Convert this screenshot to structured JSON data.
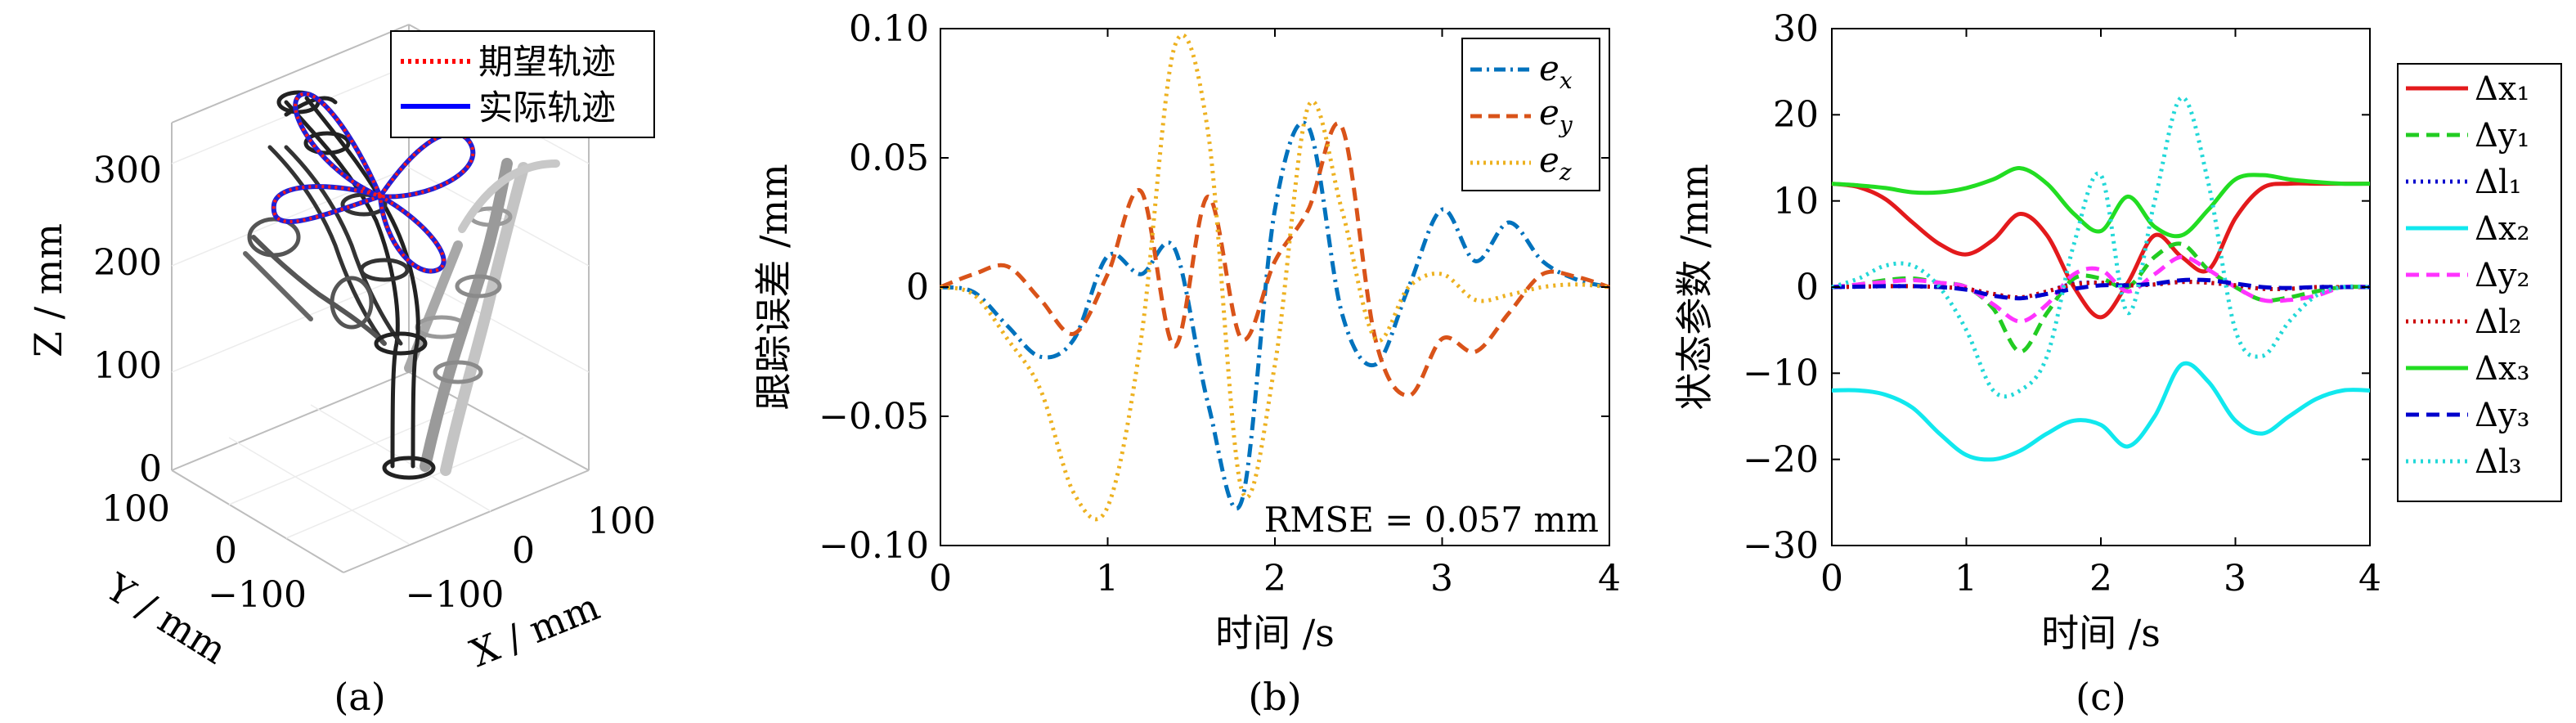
{
  "chart_data": [
    {
      "panel": "(a)",
      "type": "3d-line",
      "zlabel": "Z / mm",
      "ylabel": "Y / mm",
      "xlabel": "X / mm",
      "zticks": [
        "0",
        "100",
        "200",
        "300"
      ],
      "yticks": [
        "100",
        "0",
        "−100"
      ],
      "xticks": [
        "−100",
        "0",
        "100"
      ],
      "legend": [
        {
          "name": "期望轨迹",
          "color": "#ff0000",
          "style": "dotted"
        },
        {
          "name": "实际轨迹",
          "color": "#0000ff",
          "style": "solid"
        }
      ],
      "legend_position": "top-right"
    },
    {
      "panel": "(b)",
      "type": "line",
      "xlabel": "时间 /s",
      "ylabel": "跟踪误差 /mm",
      "xlim": [
        0,
        4
      ],
      "ylim": [
        -0.1,
        0.1
      ],
      "xticks": [
        "0",
        "1",
        "2",
        "3",
        "4"
      ],
      "yticks": [
        "0.10",
        "0.05",
        "0",
        "−0.05",
        "−0.10"
      ],
      "annotation": "RMSE = 0.057 mm",
      "legend_position": "top-right",
      "x": [
        0,
        0.2,
        0.4,
        0.6,
        0.8,
        1.0,
        1.2,
        1.4,
        1.6,
        1.8,
        2.0,
        2.2,
        2.4,
        2.6,
        2.8,
        3.0,
        3.2,
        3.4,
        3.6,
        3.8,
        4.0
      ],
      "series": [
        {
          "name": "e_x",
          "color": "#0072bd",
          "style": "dashdot",
          "values": [
            0,
            -0.002,
            -0.015,
            -0.027,
            -0.02,
            0.012,
            0.005,
            0.015,
            -0.045,
            -0.083,
            0.03,
            0.062,
            -0.01,
            -0.03,
            0.0,
            0.03,
            0.01,
            0.025,
            0.01,
            0.003,
            0
          ]
        },
        {
          "name": "e_y",
          "color": "#d95319",
          "style": "dashed",
          "values": [
            0,
            0.005,
            0.008,
            -0.005,
            -0.018,
            0.005,
            0.037,
            -0.023,
            0.035,
            -0.02,
            0.01,
            0.03,
            0.062,
            -0.02,
            -0.042,
            -0.02,
            -0.025,
            -0.01,
            0.005,
            0.004,
            0
          ]
        },
        {
          "name": "e_z",
          "color": "#edb120",
          "style": "dotted",
          "values": [
            0,
            -0.003,
            -0.02,
            -0.04,
            -0.08,
            -0.085,
            -0.02,
            0.093,
            0.06,
            -0.078,
            -0.03,
            0.07,
            0.03,
            -0.02,
            0.0,
            0.005,
            -0.005,
            -0.003,
            0.0,
            0.001,
            0
          ]
        }
      ]
    },
    {
      "panel": "(c)",
      "type": "line",
      "xlabel": "时间 /s",
      "ylabel": "状态参数 /mm",
      "xlim": [
        0,
        4
      ],
      "ylim": [
        -30,
        30
      ],
      "xticks": [
        "0",
        "1",
        "2",
        "3",
        "4"
      ],
      "yticks": [
        "30",
        "20",
        "10",
        "0",
        "−10",
        "−20",
        "−30"
      ],
      "legend_position": "outside-right",
      "x": [
        0,
        0.2,
        0.4,
        0.6,
        0.8,
        1.0,
        1.2,
        1.4,
        1.6,
        1.8,
        2.0,
        2.2,
        2.4,
        2.6,
        2.8,
        3.0,
        3.2,
        3.4,
        3.6,
        3.8,
        4.0
      ],
      "series": [
        {
          "name": "Δx₁",
          "color": "#e31a1c",
          "style": "solid",
          "values": [
            12,
            11.6,
            10.2,
            7.5,
            5,
            3.8,
            5.5,
            8.5,
            6,
            0,
            -3.5,
            0.5,
            6,
            3.5,
            2,
            8,
            11.5,
            12,
            12,
            12,
            12
          ]
        },
        {
          "name": "Δy₁",
          "color": "#22cc22",
          "style": "dashed",
          "values": [
            0,
            0.3,
            0.8,
            1,
            0.5,
            0,
            -2.5,
            -7.5,
            -3,
            1,
            1,
            0,
            3.5,
            5,
            2,
            0,
            -1.5,
            -1.2,
            -0.5,
            0,
            0
          ]
        },
        {
          "name": "Δl₁",
          "color": "#0000cc",
          "style": "dotted",
          "values": [
            0,
            0.05,
            0.1,
            0.1,
            0,
            -0.2,
            -0.8,
            -1.2,
            -0.5,
            0.4,
            0.5,
            0.2,
            0.3,
            0.6,
            0.5,
            0.2,
            -0.2,
            -0.2,
            0,
            0,
            0
          ]
        },
        {
          "name": "Δx₂",
          "color": "#11e8ee",
          "style": "solid",
          "values": [
            -12,
            -12,
            -12.5,
            -14,
            -17,
            -19.5,
            -20,
            -19,
            -17,
            -15.5,
            -16,
            -18.5,
            -15,
            -9,
            -11,
            -15.5,
            -17,
            -15,
            -13,
            -12,
            -12
          ]
        },
        {
          "name": "Δy₂",
          "color": "#ff33ff",
          "style": "dashed",
          "values": [
            0,
            0.3,
            0.6,
            0.8,
            0.5,
            0,
            -2,
            -4,
            -2,
            1.5,
            2,
            -0.5,
            1.5,
            3.5,
            2,
            0,
            -1.5,
            -1.5,
            -1,
            0,
            0
          ]
        },
        {
          "name": "Δl₂",
          "color": "#cc0000",
          "style": "dotted",
          "values": [
            0,
            0.05,
            0.1,
            0.1,
            0,
            -0.2,
            -0.8,
            -1.2,
            -0.5,
            0.3,
            0.5,
            0.2,
            0.3,
            0.6,
            0.5,
            0.2,
            -0.2,
            -0.2,
            0,
            0,
            0
          ]
        },
        {
          "name": "Δx₃",
          "color": "#22dd22",
          "style": "solid",
          "values": [
            12,
            11.8,
            11.5,
            11,
            11,
            11.5,
            12.5,
            13.8,
            12,
            8.5,
            6.5,
            10.5,
            7,
            6,
            9,
            12.5,
            13,
            12.5,
            12.2,
            12,
            12
          ]
        },
        {
          "name": "Δy₃",
          "color": "#0000cc",
          "style": "dashed",
          "values": [
            0,
            0.05,
            0.1,
            0.1,
            0,
            -0.3,
            -1,
            -1.3,
            -0.8,
            -0.2,
            0.2,
            0.2,
            0.4,
            0.8,
            0.8,
            0.4,
            0,
            -0.1,
            0,
            0,
            0
          ]
        },
        {
          "name": "Δl₃",
          "color": "#22d8d8",
          "style": "dotted",
          "values": [
            0,
            1,
            2.5,
            2.5,
            0,
            -5,
            -12,
            -12,
            -8,
            5,
            13,
            -3,
            10,
            22,
            12,
            -5,
            -8,
            -4,
            -1,
            0,
            0
          ]
        }
      ]
    }
  ],
  "panel_labels": [
    "(a)",
    "(b)",
    "(c)"
  ]
}
